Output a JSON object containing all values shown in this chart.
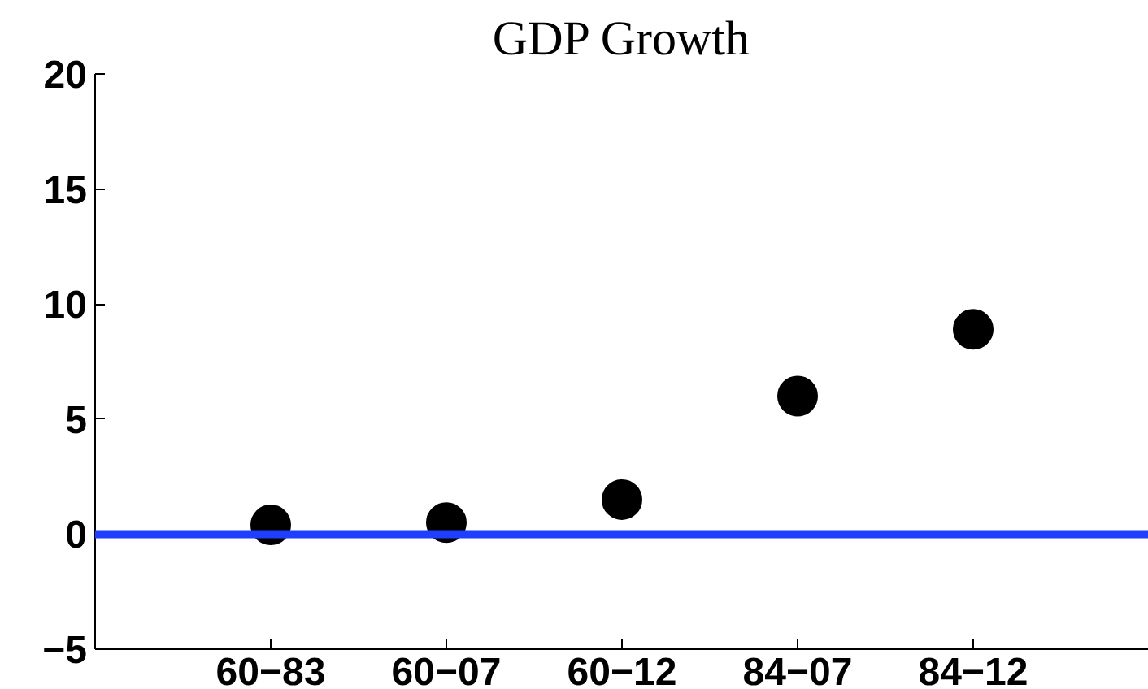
{
  "chart_data": {
    "type": "scatter",
    "title": "GDP Growth",
    "categories": [
      "60−83",
      "60−07",
      "60−12",
      "84−07",
      "84−12"
    ],
    "values": [
      0.4,
      0.5,
      1.5,
      6.0,
      8.9
    ],
    "color": "#000000",
    "marker": "circle",
    "ylim": [
      -5,
      20
    ],
    "yticks": [
      {
        "value": -5,
        "label": "−5"
      },
      0,
      5,
      10,
      15,
      20
    ],
    "ref_lines": [
      {
        "axis": "y",
        "value": 0,
        "color": "#1f3fff",
        "line_style": "solid"
      }
    ],
    "grid": false
  }
}
